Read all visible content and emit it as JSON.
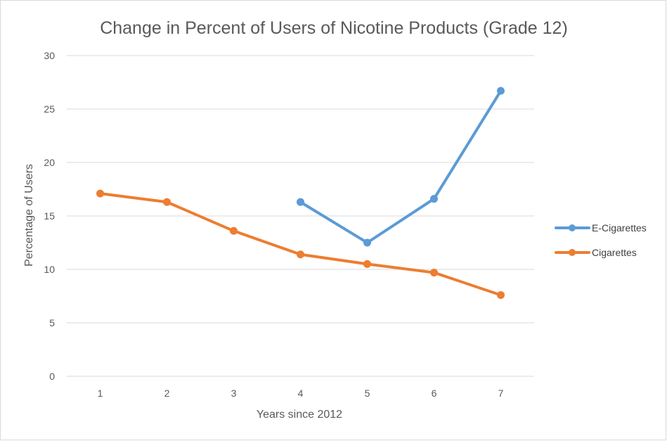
{
  "chart_data": {
    "type": "line",
    "title": "Change in Percent of Users of Nicotine Products (Grade 12)",
    "xlabel": "Years since 2012",
    "ylabel": "Percentage of Users",
    "x": [
      1,
      2,
      3,
      4,
      5,
      6,
      7
    ],
    "x_tick_labels": [
      "1",
      "2",
      "3",
      "4",
      "5",
      "6",
      "7"
    ],
    "y_tick_labels": [
      "0",
      "5",
      "10",
      "15",
      "20",
      "25",
      "30"
    ],
    "ylim": [
      0,
      30
    ],
    "grid": true,
    "legend_position": "right",
    "series": [
      {
        "name": "E-Cigarettes",
        "color": "#5b9bd5",
        "values": [
          null,
          null,
          null,
          16.3,
          12.5,
          16.6,
          26.7
        ]
      },
      {
        "name": "Cigarettes",
        "color": "#ed7d31",
        "values": [
          17.1,
          16.3,
          13.6,
          11.4,
          10.5,
          9.7,
          7.6
        ]
      }
    ]
  }
}
